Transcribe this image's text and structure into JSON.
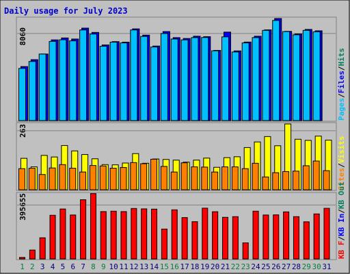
{
  "title": "Daily usage for July 2023",
  "colors": {
    "background": "#c0c0c0",
    "title": "#0000cc",
    "panel_border": "#7f7f7f",
    "gridline": "#7f7f7f",
    "tick_weekday": "#000080",
    "tick_weekend": "#00803f",
    "hits": "#00805c",
    "files": "#0000ff",
    "pages": "#00c0ff",
    "visits": "#ffff00",
    "sites": "#ff8000",
    "kb_out": "#00805c",
    "kb_in": "#0000ff",
    "kb_f": "#ff0000"
  },
  "chart_data": [
    {
      "type": "bar",
      "panel": "hits-files-pages",
      "x": [
        1,
        2,
        3,
        4,
        5,
        6,
        7,
        8,
        9,
        10,
        11,
        12,
        13,
        14,
        15,
        16,
        17,
        18,
        19,
        20,
        21,
        22,
        23,
        24,
        25,
        26,
        27,
        28,
        29,
        30,
        31
      ],
      "ylim": [
        0,
        9450
      ],
      "y_tick_label": "8060",
      "y_tick_value": 8060,
      "legend": [
        "Pages",
        "Files",
        "Hits"
      ],
      "legend_placement": "right",
      "series": [
        {
          "name": "Hits",
          "values": [
            5000,
            5640,
            6160,
            7470,
            7650,
            7550,
            8560,
            8160,
            7000,
            7310,
            7260,
            8490,
            7910,
            6900,
            8240,
            7680,
            7600,
            7810,
            7770,
            6500,
            8190,
            6450,
            7270,
            7810,
            8400,
            9450,
            8260,
            8020,
            8440,
            8310,
            0
          ]
        },
        {
          "name": "Files",
          "values": [
            5000,
            5640,
            6160,
            7470,
            7650,
            7550,
            8560,
            8160,
            7000,
            7310,
            7260,
            8490,
            7910,
            6900,
            8240,
            7680,
            7600,
            7810,
            7770,
            6500,
            8190,
            6450,
            7270,
            7810,
            8400,
            9450,
            8260,
            8020,
            8440,
            8310,
            0
          ]
        },
        {
          "name": "Pages",
          "values": [
            4830,
            5470,
            6160,
            7330,
            7480,
            7380,
            8390,
            8010,
            6880,
            7260,
            7190,
            8390,
            7790,
            6810,
            8060,
            7550,
            7470,
            7680,
            7690,
            6460,
            7750,
            6350,
            7190,
            7680,
            8350,
            9270,
            8240,
            7940,
            8350,
            8220,
            0
          ]
        }
      ],
      "grid": true
    },
    {
      "type": "bar",
      "panel": "visits-sites",
      "x": [
        1,
        2,
        3,
        4,
        5,
        6,
        7,
        8,
        9,
        10,
        11,
        12,
        13,
        14,
        15,
        16,
        17,
        18,
        19,
        20,
        21,
        22,
        23,
        24,
        25,
        26,
        27,
        28,
        29,
        30,
        31
      ],
      "ylim": [
        0,
        293
      ],
      "y_tick_label": "263",
      "y_tick_value": 263,
      "legend": [
        "Visits",
        "Sites"
      ],
      "legend_placement": "right",
      "series": [
        {
          "name": "Visits",
          "values": [
            140,
            102,
            153,
            146,
            197,
            173,
            157,
            138,
            112,
            111,
            119,
            161,
            118,
            137,
            135,
            132,
            123,
            132,
            141,
            100,
            143,
            147,
            188,
            213,
            237,
            196,
            293,
            225,
            220,
            239,
            221
          ]
        },
        {
          "name": "Sites",
          "values": [
            94,
            96,
            68,
            97,
            112,
            96,
            79,
            108,
            106,
            96,
            99,
            121,
            116,
            136,
            104,
            79,
            120,
            102,
            101,
            79,
            102,
            102,
            94,
            118,
            57,
            76,
            81,
            83,
            107,
            128,
            85
          ]
        }
      ],
      "grid": true
    },
    {
      "type": "bar",
      "panel": "kb",
      "x": [
        1,
        2,
        3,
        4,
        5,
        6,
        7,
        8,
        9,
        10,
        11,
        12,
        13,
        14,
        15,
        16,
        17,
        18,
        19,
        20,
        21,
        22,
        23,
        24,
        25,
        26,
        27,
        28,
        29,
        30,
        31
      ],
      "ylim": [
        0,
        477000
      ],
      "y_tick_label": "395655",
      "y_tick_value": 395655,
      "legend": [
        "KB F",
        "KB In",
        "KB Out"
      ],
      "legend_placement": "right",
      "series": [
        {
          "name": "KB F",
          "values": [
            11000,
            65000,
            155000,
            320000,
            366000,
            322000,
            434000,
            479000,
            347000,
            350000,
            347000,
            370000,
            367000,
            365000,
            219000,
            360000,
            303000,
            273000,
            372000,
            346000,
            305000,
            310000,
            118000,
            350000,
            322000,
            323000,
            345000,
            310000,
            272000,
            330000,
            371000
          ]
        }
      ],
      "grid": true
    }
  ]
}
